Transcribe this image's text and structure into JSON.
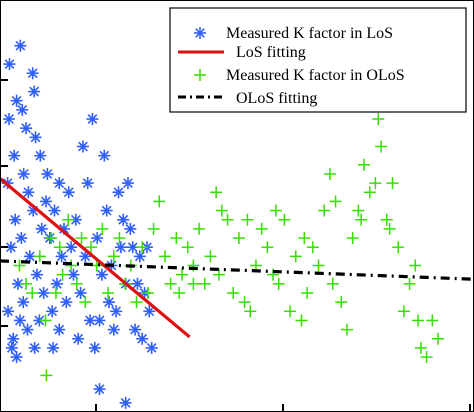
{
  "chart_data": {
    "type": "scatter",
    "title": "",
    "xlabel": "",
    "ylabel": "",
    "xlim": [
      0,
      100
    ],
    "ylim": [
      -1.6,
      2.9
    ],
    "grid": false,
    "legend_position": "top-right",
    "series": [
      {
        "name": "Measured K factor in LoS",
        "type": "scatter",
        "marker": "asterisk",
        "color": "#2f5fff",
        "points": [
          [
            1.9,
            1.6
          ],
          [
            1.6,
            0.9
          ],
          [
            2.3,
            0.2
          ],
          [
            1.7,
            -0.5
          ],
          [
            2.5,
            -0.9
          ],
          [
            2.0,
            2.2
          ],
          [
            3.5,
            1.8
          ],
          [
            3.0,
            1.2
          ],
          [
            3.2,
            0.5
          ],
          [
            3.8,
            -0.2
          ],
          [
            2.8,
            -0.8
          ],
          [
            3.5,
            -1.0
          ],
          [
            4.3,
            2.4
          ],
          [
            4.7,
            1.7
          ],
          [
            5.0,
            1.0
          ],
          [
            4.5,
            0.3
          ],
          [
            4.9,
            -0.4
          ],
          [
            4.2,
            -0.6
          ],
          [
            5.5,
            1.5
          ],
          [
            6.0,
            0.8
          ],
          [
            6.3,
            0.1
          ],
          [
            5.8,
            -0.7
          ],
          [
            6.9,
            2.1
          ],
          [
            7.2,
            1.9
          ],
          [
            7.5,
            1.4
          ],
          [
            7.0,
            0.6
          ],
          [
            7.8,
            -0.1
          ],
          [
            7.3,
            -0.9
          ],
          [
            8.5,
            1.2
          ],
          [
            8.8,
            0.4
          ],
          [
            9.2,
            -0.3
          ],
          [
            8.3,
            -0.6
          ],
          [
            10.0,
            1.0
          ],
          [
            10.5,
            0.3
          ],
          [
            11.0,
            -0.5
          ],
          [
            9.7,
            0.7
          ],
          [
            11.5,
            0.6
          ],
          [
            12.0,
            -0.2
          ],
          [
            12.5,
            0.9
          ],
          [
            13.0,
            0.1
          ],
          [
            14.0,
            -0.4
          ],
          [
            13.5,
            0.4
          ],
          [
            15.0,
            0.2
          ],
          [
            16.0,
            0.5
          ],
          [
            17.0,
            -0.3
          ],
          [
            18.0,
            0.1
          ],
          [
            19.0,
            -0.6
          ],
          [
            20.5,
            0.3
          ],
          [
            21.5,
            -0.1
          ],
          [
            22.5,
            0.6
          ],
          [
            23.5,
            0.0
          ],
          [
            24.5,
            -0.5
          ],
          [
            25.5,
            0.2
          ],
          [
            26.5,
            -0.2
          ],
          [
            27.5,
            0.4
          ],
          [
            28.5,
            -0.7
          ],
          [
            29.5,
            0.1
          ],
          [
            30.5,
            -0.3
          ],
          [
            31.5,
            -0.5
          ],
          [
            32.0,
            -0.9
          ],
          [
            19.5,
            1.6
          ],
          [
            22.0,
            1.2
          ],
          [
            25.0,
            0.8
          ],
          [
            27.0,
            0.9
          ],
          [
            16.5,
            -0.8
          ],
          [
            20.0,
            -0.9
          ],
          [
            24.0,
            -0.7
          ],
          [
            29.0,
            -0.2
          ],
          [
            31.0,
            0.2
          ],
          [
            18.5,
            0.9
          ],
          [
            17.5,
            1.3
          ],
          [
            26.0,
            0.5
          ],
          [
            21.0,
            -0.6
          ],
          [
            23.0,
            -0.4
          ],
          [
            15.5,
            -0.1
          ],
          [
            14.5,
            0.8
          ],
          [
            28.0,
            0.2
          ],
          [
            30.0,
            -0.8
          ],
          [
            12.5,
            -0.7
          ],
          [
            11.2,
            -0.9
          ],
          [
            26.5,
            -1.5
          ],
          [
            21.0,
            -1.35
          ]
        ]
      },
      {
        "name": "LoS fitting",
        "type": "line",
        "style": "solid",
        "color": "#e01010",
        "points": [
          [
            0,
            0.95
          ],
          [
            40,
            -0.78
          ]
        ]
      },
      {
        "name": "Measured K factor in OLoS",
        "type": "scatter",
        "marker": "plus",
        "color": "#33e000",
        "points": [
          [
            4.1,
            0.0
          ],
          [
            5.5,
            -0.2
          ],
          [
            6.8,
            -0.3
          ],
          [
            8.4,
            0.1
          ],
          [
            9.6,
            -0.6
          ],
          [
            9.8,
            -1.2
          ],
          [
            10.8,
            0.3
          ],
          [
            11.8,
            -0.3
          ],
          [
            12.6,
            0.2
          ],
          [
            13.2,
            -0.1
          ],
          [
            14.4,
            0.5
          ],
          [
            15.0,
            0.0
          ],
          [
            16.2,
            -0.2
          ],
          [
            17.2,
            0.3
          ],
          [
            18.0,
            -0.4
          ],
          [
            19.2,
            0.2
          ],
          [
            20.4,
            0.0
          ],
          [
            21.6,
            0.4
          ],
          [
            22.8,
            -0.3
          ],
          [
            24.0,
            0.1
          ],
          [
            25.2,
            0.3
          ],
          [
            26.4,
            -0.2
          ],
          [
            27.6,
            0.0
          ],
          [
            28.8,
            -0.4
          ],
          [
            30.0,
            0.2
          ],
          [
            31.2,
            -0.3
          ],
          [
            32.4,
            0.4
          ],
          [
            33.6,
            0.7
          ],
          [
            34.8,
            0.1
          ],
          [
            36.0,
            -0.2
          ],
          [
            37.2,
            0.3
          ],
          [
            38.4,
            -0.1
          ],
          [
            39.6,
            0.2
          ],
          [
            40.8,
            0.0
          ],
          [
            42.0,
            0.4
          ],
          [
            43.2,
            -0.2
          ],
          [
            44.4,
            0.1
          ],
          [
            45.6,
            0.8
          ],
          [
            46.8,
            0.6
          ],
          [
            48.0,
            0.5
          ],
          [
            49.2,
            -0.3
          ],
          [
            50.4,
            0.3
          ],
          [
            51.6,
            -0.4
          ],
          [
            52.8,
            -0.5
          ],
          [
            54.0,
            0.0
          ],
          [
            55.2,
            0.4
          ],
          [
            56.4,
            0.2
          ],
          [
            57.6,
            -0.1
          ],
          [
            58.8,
            -0.2
          ],
          [
            60.0,
            0.5
          ],
          [
            61.2,
            -0.5
          ],
          [
            62.4,
            0.1
          ],
          [
            63.6,
            -0.6
          ],
          [
            64.8,
            -0.3
          ],
          [
            66.0,
            0.2
          ],
          [
            67.2,
            0.0
          ],
          [
            68.4,
            0.6
          ],
          [
            69.6,
            1.0
          ],
          [
            70.8,
            0.7
          ],
          [
            72.0,
            -0.4
          ],
          [
            73.2,
            -0.7
          ],
          [
            74.4,
            0.3
          ],
          [
            75.6,
            0.6
          ],
          [
            76.8,
            1.1
          ],
          [
            78.0,
            0.8
          ],
          [
            79.2,
            0.9
          ],
          [
            80.4,
            1.3
          ],
          [
            81.6,
            0.5
          ],
          [
            82.8,
            0.9
          ],
          [
            84.0,
            0.2
          ],
          [
            85.2,
            -0.5
          ],
          [
            86.4,
            -0.2
          ],
          [
            87.6,
            0.0
          ],
          [
            88.8,
            -0.9
          ],
          [
            90.0,
            -1.0
          ],
          [
            91.2,
            -0.6
          ],
          [
            92.4,
            -0.8
          ],
          [
            37.8,
            -0.3
          ],
          [
            40.8,
            -0.2
          ],
          [
            46.2,
            -0.1
          ],
          [
            52.2,
            0.5
          ],
          [
            58.2,
            0.6
          ],
          [
            64.2,
            0.3
          ],
          [
            70.2,
            -0.2
          ],
          [
            76.2,
            0.5
          ],
          [
            82.2,
            0.4
          ],
          [
            88.2,
            -0.6
          ],
          [
            79.8,
            1.6
          ]
        ]
      },
      {
        "name": "OLoS fitting",
        "type": "line",
        "style": "dash-dot",
        "color": "#000000",
        "points": [
          [
            0,
            0.05
          ],
          [
            100,
            -0.15
          ]
        ]
      }
    ]
  }
}
